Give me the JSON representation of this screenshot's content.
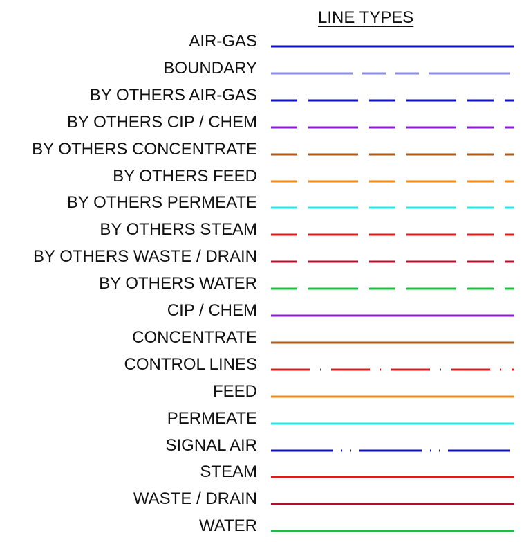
{
  "title": "LINE TYPES",
  "line_types": [
    {
      "label": "AIR-GAS",
      "color": "#1010c0",
      "pattern": "solid"
    },
    {
      "label": "BOUNDARY",
      "color": "#8c8ce0",
      "pattern": "long-dash"
    },
    {
      "label": "BY OTHERS AIR-GAS",
      "color": "#1010c0",
      "pattern": "dash"
    },
    {
      "label": "BY OTHERS CIP / CHEM",
      "color": "#8a1fd0",
      "pattern": "dash"
    },
    {
      "label": "BY OTHERS CONCENTRATE",
      "color": "#b05a14",
      "pattern": "dash"
    },
    {
      "label": "BY OTHERS FEED",
      "color": "#f08a18",
      "pattern": "dash"
    },
    {
      "label": "BY OTHERS PERMEATE",
      "color": "#1ee8e8",
      "pattern": "dash"
    },
    {
      "label": "BY OTHERS STEAM",
      "color": "#e01818",
      "pattern": "dash"
    },
    {
      "label": "BY OTHERS WASTE / DRAIN",
      "color": "#b0102c",
      "pattern": "dash"
    },
    {
      "label": "BY OTHERS WATER",
      "color": "#18c040",
      "pattern": "dash"
    },
    {
      "label": "CIP / CHEM",
      "color": "#8a1fd0",
      "pattern": "solid"
    },
    {
      "label": "CONCENTRATE",
      "color": "#b05a14",
      "pattern": "solid"
    },
    {
      "label": "CONTROL LINES",
      "color": "#e01818",
      "pattern": "dash-dot"
    },
    {
      "label": "FEED",
      "color": "#f08a18",
      "pattern": "solid"
    },
    {
      "label": "PERMEATE",
      "color": "#1ee8e8",
      "pattern": "solid"
    },
    {
      "label": "SIGNAL AIR",
      "color": "#1010c0",
      "pattern": "dash-dot-dot"
    },
    {
      "label": "STEAM",
      "color": "#e01818",
      "pattern": "solid"
    },
    {
      "label": "WASTE / DRAIN",
      "color": "#b0102c",
      "pattern": "solid"
    },
    {
      "label": "WATER",
      "color": "#18c040",
      "pattern": "solid"
    }
  ]
}
